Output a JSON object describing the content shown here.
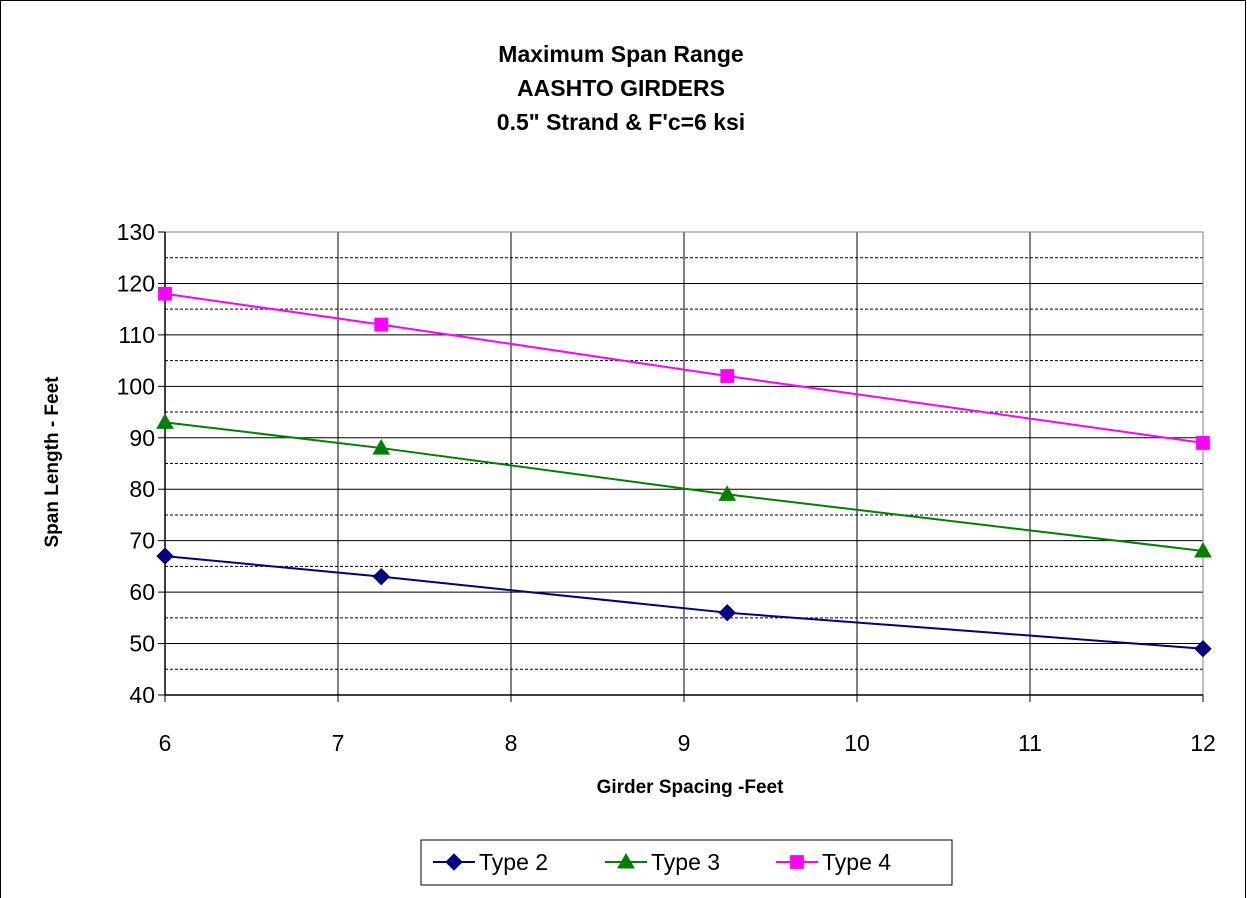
{
  "chart_data": {
    "type": "line",
    "title_lines": [
      "Maximum Span Range",
      "AASHTO GIRDERS",
      "0.5\" Strand & F'c=6 ksi"
    ],
    "xlabel": "Girder Spacing -Feet",
    "ylabel": "Span Length - Feet",
    "xlim": [
      6,
      12
    ],
    "ylim": [
      40,
      130
    ],
    "x_ticks": [
      6,
      7,
      8,
      9,
      10,
      11,
      12
    ],
    "y_ticks": [
      40,
      50,
      60,
      70,
      80,
      90,
      100,
      110,
      120,
      130
    ],
    "grid": "major solid, minor dashed (horizontal)",
    "legend_position": "bottom",
    "series": [
      {
        "name": "Type 2",
        "color": "#000080",
        "marker": "diamond",
        "x": [
          6,
          7.25,
          9.25,
          12
        ],
        "y": [
          67,
          63,
          56,
          49
        ]
      },
      {
        "name": "Type 3",
        "color": "#008000",
        "marker": "triangle",
        "x": [
          6,
          7.25,
          9.25,
          12
        ],
        "y": [
          93,
          88,
          79,
          68
        ]
      },
      {
        "name": "Type 4",
        "color": "#ff00ff",
        "marker": "square",
        "x": [
          6,
          7.25,
          9.25,
          12
        ],
        "y": [
          118,
          112,
          102,
          89
        ]
      }
    ]
  }
}
